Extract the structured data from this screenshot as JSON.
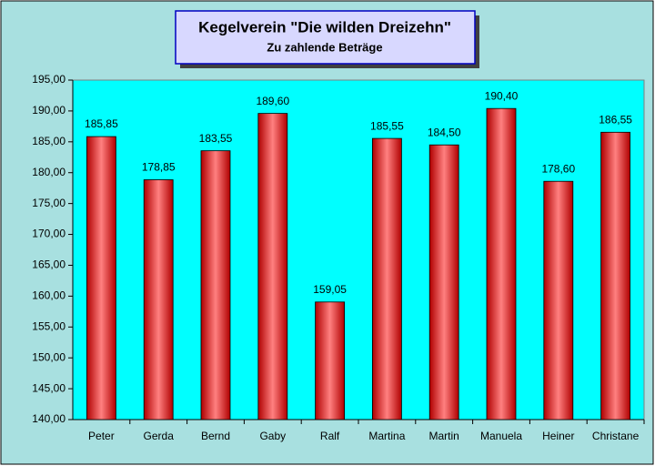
{
  "chart_data": {
    "type": "bar",
    "title": "Kegelverein \"Die wilden Dreizehn\"",
    "subtitle": "Zu zahlende Beträge",
    "categories": [
      "Peter",
      "Gerda",
      "Bernd",
      "Gaby",
      "Ralf",
      "Martina",
      "Martin",
      "Manuela",
      "Heiner",
      "Christane"
    ],
    "values": [
      185.85,
      178.85,
      183.55,
      189.6,
      159.05,
      185.55,
      184.5,
      190.4,
      178.6,
      186.55
    ],
    "value_labels": [
      "185,85",
      "178,85",
      "183,55",
      "189,60",
      "159,05",
      "185,55",
      "184,50",
      "190,40",
      "178,60",
      "186,55"
    ],
    "color": "#ff0000",
    "ylim": [
      140,
      195
    ],
    "yticks": [
      {
        "value": 140,
        "label": "140,00"
      },
      {
        "value": 145,
        "label": "145,00"
      },
      {
        "value": 150,
        "label": "150,00"
      },
      {
        "value": 155,
        "label": "155,00"
      },
      {
        "value": 160,
        "label": "160,00"
      },
      {
        "value": 165,
        "label": "165,00"
      },
      {
        "value": 170,
        "label": "170,00"
      },
      {
        "value": 175,
        "label": "175,00"
      },
      {
        "value": 180,
        "label": "180,00"
      },
      {
        "value": 185,
        "label": "185,00"
      },
      {
        "value": 190,
        "label": "190,00"
      },
      {
        "value": 195,
        "label": "195,00"
      }
    ]
  }
}
